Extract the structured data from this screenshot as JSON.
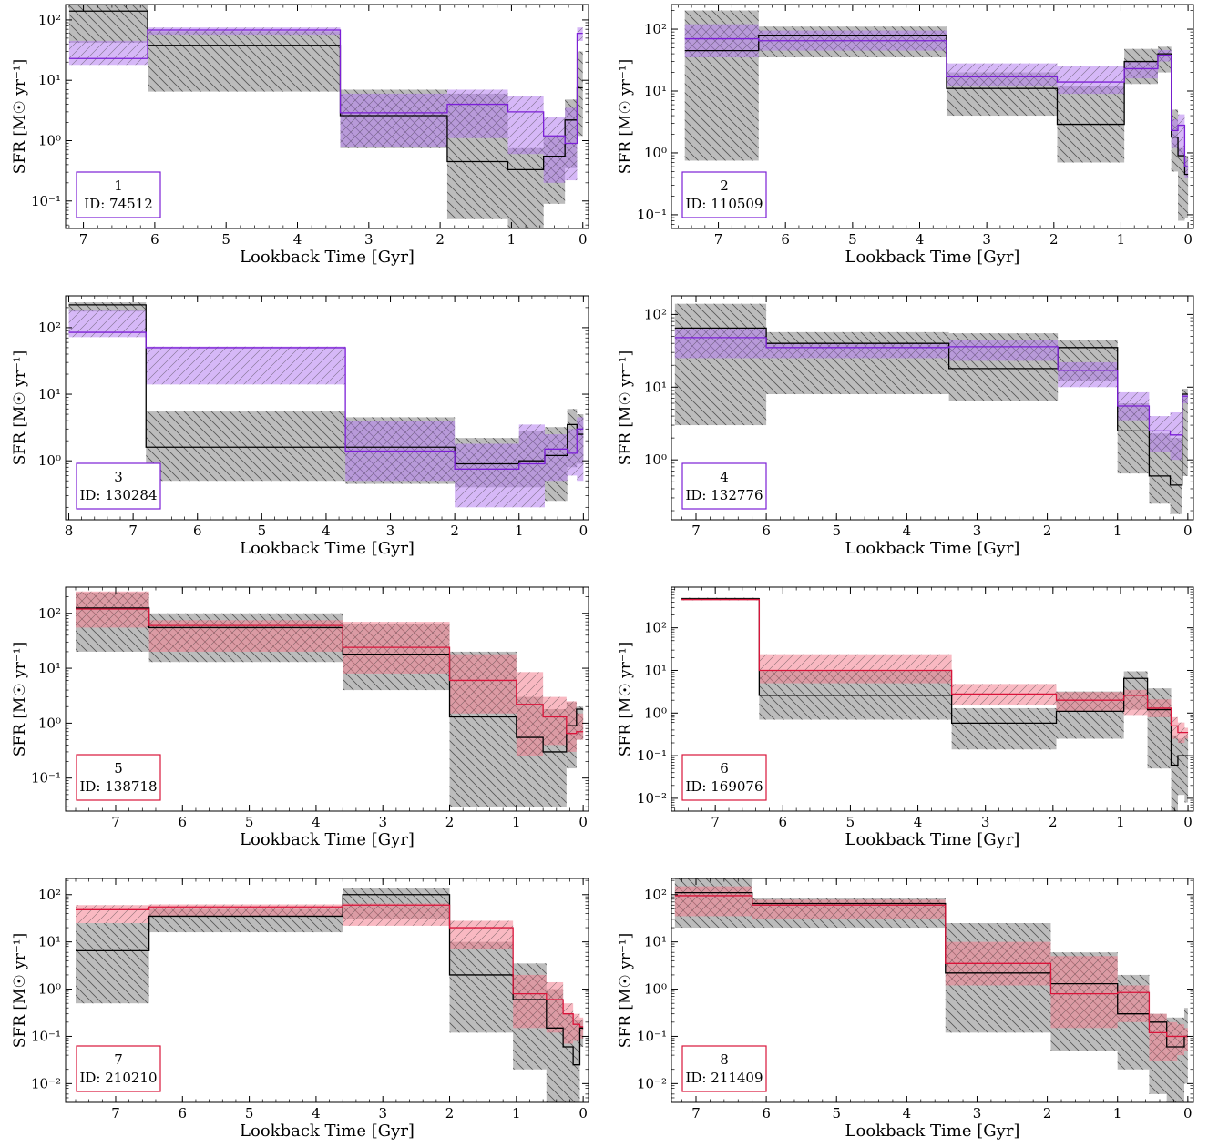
{
  "figure": {
    "xlabel": "Lookback Time [Gyr]",
    "ylabel": "SFR [M☉ yr⁻¹]"
  },
  "colors": {
    "purple": "#7b1fd6",
    "purple_fill": "#b57ef0",
    "red": "#d9143a",
    "red_fill": "#f4808f",
    "black": "#000000",
    "gray_fill": "#8f8f8f"
  },
  "chart_data": [
    {
      "type": "line",
      "number": "1",
      "id_label": "ID: 74512",
      "accent": "purple",
      "xlim": [
        7.25,
        -0.08
      ],
      "ylim": [
        0.035,
        180
      ],
      "yscale": "log",
      "xticks": [
        7,
        6,
        5,
        4,
        3,
        2,
        1,
        0
      ],
      "yticks": [
        {
          "v": 100,
          "l": "10²"
        },
        {
          "v": 10,
          "l": "10¹"
        },
        {
          "v": 1,
          "l": "10⁰"
        },
        {
          "v": 0.1,
          "l": "10⁻¹"
        }
      ],
      "bins": [
        7.2,
        6.1,
        3.4,
        1.9,
        1.05,
        0.55,
        0.25,
        0.08,
        0.0
      ],
      "black": {
        "median": [
          140,
          38,
          2.6,
          0.45,
          0.33,
          0.55,
          2.2,
          7.5
        ],
        "lo": [
          42,
          6.5,
          0.75,
          0.05,
          0.028,
          0.09,
          0.35,
          1.2
        ],
        "hi": [
          240,
          65,
          7.0,
          6.0,
          0.75,
          1.2,
          4.8,
          30
        ]
      },
      "model": {
        "median": [
          23,
          68,
          2.9,
          4.0,
          3.0,
          1.2,
          0.9,
          60
        ],
        "lo": [
          18,
          57,
          0.8,
          1.1,
          0.6,
          0.2,
          0.22,
          45
        ],
        "hi": [
          45,
          75,
          6.0,
          7.0,
          5.5,
          2.5,
          3.5,
          75
        ]
      }
    },
    {
      "type": "line",
      "number": "2",
      "id_label": "ID: 110509",
      "accent": "purple",
      "xlim": [
        7.7,
        -0.08
      ],
      "ylim": [
        0.06,
        250
      ],
      "yscale": "log",
      "xticks": [
        7,
        6,
        5,
        4,
        3,
        2,
        1,
        0
      ],
      "yticks": [
        {
          "v": 100,
          "l": "10²"
        },
        {
          "v": 10,
          "l": "10¹"
        },
        {
          "v": 1,
          "l": "10⁰"
        },
        {
          "v": 0.1,
          "l": "10⁻¹"
        }
      ],
      "bins": [
        7.5,
        6.4,
        3.6,
        1.95,
        0.95,
        0.45,
        0.25,
        0.15,
        0.05,
        0.0
      ],
      "black": {
        "median": [
          45,
          80,
          11,
          2.9,
          30,
          40,
          1.8,
          0.9,
          0.45
        ],
        "lo": [
          0.75,
          35,
          4.0,
          0.7,
          13,
          20,
          0.5,
          0.08,
          0.09
        ],
        "hi": [
          200,
          110,
          20,
          12,
          48,
          52,
          5.0,
          1.2,
          0.9
        ]
      },
      "model": {
        "median": [
          70,
          65,
          17,
          14,
          23,
          38,
          2.3,
          2.8,
          0.6
        ],
        "lo": [
          35,
          45,
          12,
          9,
          16,
          30,
          1.2,
          0.9,
          0.4
        ],
        "hi": [
          120,
          95,
          28,
          25,
          30,
          46,
          3.5,
          4.2,
          0.8
        ]
      }
    },
    {
      "type": "line",
      "number": "3",
      "id_label": "ID: 130284",
      "accent": "purple",
      "xlim": [
        8.05,
        -0.08
      ],
      "ylim": [
        0.13,
        300
      ],
      "yscale": "log",
      "xticks": [
        8,
        7,
        6,
        5,
        4,
        3,
        2,
        1,
        0
      ],
      "yticks": [
        {
          "v": 100,
          "l": "10²"
        },
        {
          "v": 10,
          "l": "10¹"
        },
        {
          "v": 1,
          "l": "10⁰"
        }
      ],
      "bins": [
        8.0,
        6.8,
        3.7,
        2.0,
        1.0,
        0.6,
        0.25,
        0.1,
        0.0
      ],
      "black": {
        "median": [
          220,
          1.6,
          1.6,
          0.9,
          1.0,
          1.2,
          3.5,
          2.5
        ],
        "lo": [
          175,
          0.5,
          0.45,
          0.4,
          0.4,
          0.25,
          0.8,
          0.9
        ],
        "hi": [
          240,
          5.5,
          4.5,
          2.2,
          2.8,
          3.2,
          6.0,
          5.0
        ]
      },
      "model": {
        "median": [
          85,
          50,
          1.4,
          0.75,
          0.9,
          1.5,
          1.3,
          3.0
        ],
        "lo": [
          72,
          14,
          0.5,
          0.2,
          0.2,
          0.5,
          0.6,
          0.5
        ],
        "hi": [
          180,
          52,
          4.0,
          1.8,
          3.5,
          2.5,
          3.0,
          4.5
        ]
      }
    },
    {
      "type": "line",
      "number": "4",
      "id_label": "ID: 132776",
      "accent": "purple",
      "xlim": [
        7.35,
        -0.08
      ],
      "ylim": [
        0.15,
        180
      ],
      "yscale": "log",
      "xticks": [
        7,
        6,
        5,
        4,
        3,
        2,
        1,
        0
      ],
      "yticks": [
        {
          "v": 100,
          "l": "10²"
        },
        {
          "v": 10,
          "l": "10¹"
        },
        {
          "v": 1,
          "l": "10⁰"
        }
      ],
      "bins": [
        7.3,
        6.0,
        3.4,
        1.85,
        1.0,
        0.55,
        0.25,
        0.08,
        0.0
      ],
      "black": {
        "median": [
          65,
          40,
          18,
          35,
          2.5,
          0.6,
          0.45,
          8.0
        ],
        "lo": [
          3.0,
          8.0,
          6.5,
          12,
          0.65,
          0.25,
          0.18,
          0.6
        ],
        "hi": [
          140,
          57,
          55,
          45,
          6.0,
          2.3,
          2.0,
          9.5
        ]
      },
      "model": {
        "median": [
          48,
          35,
          36,
          17,
          5.5,
          2.5,
          2.2,
          7.5
        ],
        "lo": [
          25,
          25,
          23,
          10,
          3.5,
          1.3,
          1.0,
          6.0
        ],
        "hi": [
          65,
          40,
          45,
          22,
          8.5,
          4.0,
          4.5,
          8.0
        ]
      }
    },
    {
      "type": "line",
      "number": "5",
      "id_label": "ID: 138718",
      "accent": "red",
      "xlim": [
        7.75,
        -0.08
      ],
      "ylim": [
        0.025,
        300
      ],
      "yscale": "log",
      "xticks": [
        7,
        6,
        5,
        4,
        3,
        2,
        1,
        0
      ],
      "yticks": [
        {
          "v": 100,
          "l": "10²"
        },
        {
          "v": 10,
          "l": "10¹"
        },
        {
          "v": 1,
          "l": "10⁰"
        },
        {
          "v": 0.1,
          "l": "10⁻¹"
        }
      ],
      "bins": [
        7.6,
        6.5,
        3.6,
        2.0,
        1.0,
        0.6,
        0.25,
        0.1,
        0.0
      ],
      "black": {
        "median": [
          125,
          55,
          18,
          1.3,
          0.55,
          0.3,
          0.9,
          1.8
        ],
        "lo": [
          20,
          13,
          4.0,
          0.03,
          0.03,
          0.03,
          0.15,
          0.5
        ],
        "hi": [
          240,
          100,
          65,
          20,
          3.0,
          1.8,
          2.4,
          2.0
        ]
      },
      "model": {
        "median": [
          120,
          60,
          24,
          6.0,
          2.2,
          1.3,
          0.65,
          0.7
        ],
        "lo": [
          55,
          20,
          8.0,
          1.5,
          0.25,
          0.4,
          0.3,
          0.5
        ],
        "hi": [
          250,
          75,
          70,
          18,
          8.5,
          3.0,
          2.5,
          1.5
        ]
      }
    },
    {
      "type": "line",
      "number": "6",
      "id_label": "ID: 169076",
      "accent": "red",
      "xlim": [
        7.65,
        -0.08
      ],
      "ylim": [
        0.005,
        900
      ],
      "yscale": "log",
      "xticks": [
        7,
        6,
        5,
        4,
        3,
        2,
        1,
        0
      ],
      "yticks": [
        {
          "v": 100,
          "l": "10²"
        },
        {
          "v": 10,
          "l": "10¹"
        },
        {
          "v": 1,
          "l": "10⁰"
        },
        {
          "v": 0.1,
          "l": "10⁻¹"
        },
        {
          "v": 0.01,
          "l": "10⁻²"
        }
      ],
      "bins": [
        7.5,
        6.35,
        3.5,
        1.95,
        0.95,
        0.6,
        0.25,
        0.15,
        0.05,
        0.0
      ],
      "black": {
        "median": [
          480,
          2.6,
          0.58,
          1.1,
          6.5,
          1.2,
          0.06,
          0.1,
          0.1
        ],
        "lo": [
          450,
          0.7,
          0.14,
          0.25,
          1.2,
          0.05,
          0.004,
          0.012,
          0.008
        ],
        "hi": [
          510,
          10,
          1.3,
          3.2,
          9.5,
          3.8,
          0.3,
          0.25,
          0.3
        ]
      },
      "model": {
        "median": [
          460,
          10,
          2.8,
          2.0,
          2.6,
          1.3,
          0.5,
          0.35,
          0.35
        ],
        "lo": [
          440,
          5.0,
          1.5,
          1.1,
          0.9,
          0.8,
          0.25,
          0.2,
          0.25
        ],
        "hi": [
          500,
          24,
          4.8,
          3.1,
          3.5,
          2.1,
          0.8,
          0.6,
          0.45
        ]
      }
    },
    {
      "type": "line",
      "number": "7",
      "id_label": "ID: 210210",
      "accent": "red",
      "xlim": [
        7.75,
        -0.08
      ],
      "ylim": [
        0.004,
        220
      ],
      "yscale": "log",
      "xticks": [
        7,
        6,
        5,
        4,
        3,
        2,
        1,
        0
      ],
      "yticks": [
        {
          "v": 100,
          "l": "10²"
        },
        {
          "v": 10,
          "l": "10¹"
        },
        {
          "v": 1,
          "l": "10⁰"
        },
        {
          "v": 0.1,
          "l": "10⁻¹"
        },
        {
          "v": 0.01,
          "l": "10⁻²"
        }
      ],
      "bins": [
        7.6,
        6.5,
        3.6,
        2.0,
        1.05,
        0.55,
        0.3,
        0.15,
        0.05,
        0.0
      ],
      "black": {
        "median": [
          6.5,
          35,
          100,
          2.0,
          0.6,
          0.15,
          0.06,
          0.025,
          0.15
        ],
        "lo": [
          0.5,
          16,
          30,
          0.12,
          0.02,
          0.003,
          0.003,
          0.003,
          0.06
        ],
        "hi": [
          25,
          50,
          140,
          10,
          3.5,
          1.0,
          0.3,
          0.22,
          0.22
        ]
      },
      "model": {
        "median": [
          48,
          55,
          60,
          20,
          0.8,
          0.6,
          0.3,
          0.18,
          0.16
        ],
        "lo": [
          25,
          35,
          22,
          7.0,
          0.15,
          0.12,
          0.07,
          0.08,
          0.09
        ],
        "hi": [
          60,
          62,
          65,
          28,
          2.0,
          1.4,
          0.5,
          0.3,
          0.25
        ]
      }
    },
    {
      "type": "line",
      "number": "8",
      "id_label": "ID: 211409",
      "accent": "red",
      "xlim": [
        7.35,
        -0.08
      ],
      "ylim": [
        0.004,
        220
      ],
      "yscale": "log",
      "xticks": [
        7,
        6,
        5,
        4,
        3,
        2,
        1,
        0
      ],
      "yticks": [
        {
          "v": 100,
          "l": "10²"
        },
        {
          "v": 10,
          "l": "10¹"
        },
        {
          "v": 1,
          "l": "10⁰"
        },
        {
          "v": 0.1,
          "l": "10⁻¹"
        },
        {
          "v": 0.01,
          "l": "10⁻²"
        }
      ],
      "bins": [
        7.3,
        6.2,
        3.45,
        1.95,
        1.0,
        0.55,
        0.3,
        0.15,
        0.05,
        0.0
      ],
      "black": {
        "median": [
          110,
          65,
          2.2,
          1.3,
          0.3,
          0.2,
          0.06,
          0.06,
          0.1
        ],
        "lo": [
          20,
          20,
          0.12,
          0.05,
          0.02,
          0.006,
          0.004,
          0.004,
          0.01
        ],
        "hi": [
          220,
          85,
          25,
          6.0,
          2.0,
          0.3,
          0.25,
          0.25,
          0.4
        ]
      },
      "model": {
        "median": [
          95,
          60,
          3.5,
          0.8,
          0.85,
          0.12,
          0.1,
          0.1,
          0.1
        ],
        "lo": [
          35,
          30,
          1.2,
          0.15,
          0.2,
          0.03,
          0.03,
          0.04,
          0.05
        ],
        "hi": [
          150,
          78,
          10,
          5.0,
          1.2,
          0.3,
          0.2,
          0.18,
          0.15
        ]
      }
    }
  ]
}
